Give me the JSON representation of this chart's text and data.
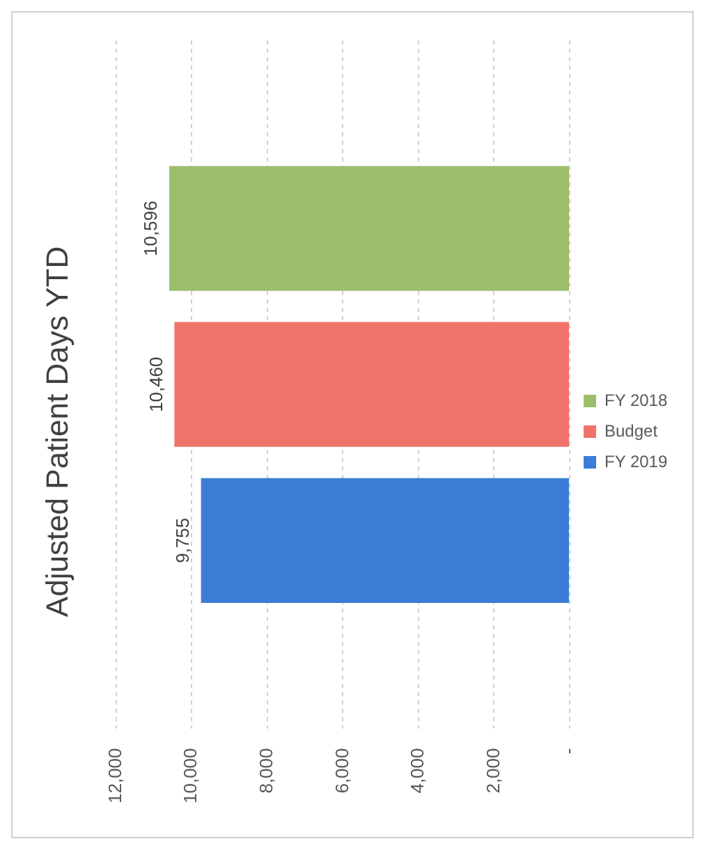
{
  "chart_data": {
    "type": "bar",
    "title": "Adjusted Patient Days YTD",
    "categories": [
      null
    ],
    "series": [
      {
        "name": "FY 2019",
        "color": "#3b7dd6",
        "values": [
          9755
        ],
        "value_labels": [
          "9,755"
        ]
      },
      {
        "name": "Budget",
        "color": "#f0736b",
        "values": [
          10460
        ],
        "value_labels": [
          "10,460"
        ]
      },
      {
        "name": "FY 2018",
        "color": "#9cbd6b",
        "values": [
          10596
        ],
        "value_labels": [
          "10,596"
        ]
      }
    ],
    "xlim": [
      12000,
      0
    ],
    "xticks": [
      {
        "value": 0,
        "label": "-"
      },
      {
        "value": 2000,
        "label": "2,000"
      },
      {
        "value": 4000,
        "label": "4,000"
      },
      {
        "value": 6000,
        "label": "6,000"
      },
      {
        "value": 8000,
        "label": "8,000"
      },
      {
        "value": 10000,
        "label": "10,000"
      },
      {
        "value": 12000,
        "label": "12,000"
      }
    ],
    "grid": "x",
    "legend": "right",
    "orientation": "horizontal"
  }
}
